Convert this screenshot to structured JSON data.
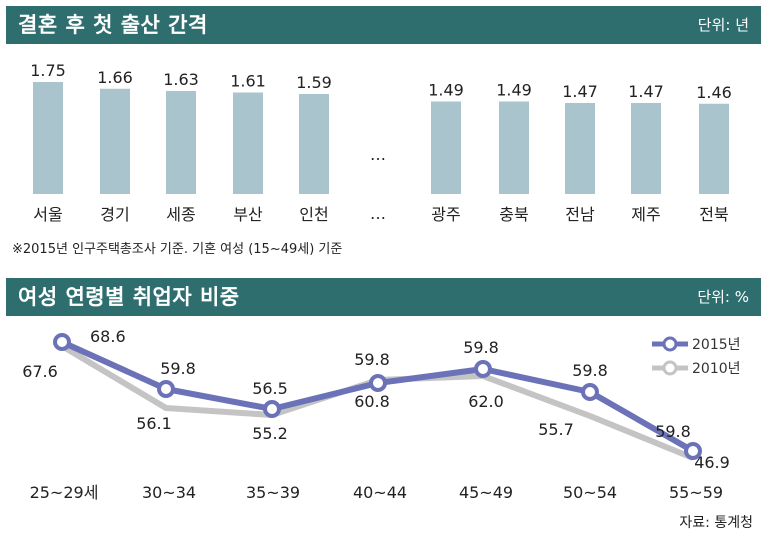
{
  "panel1": {
    "title": "결혼 후 첫 출산 간격",
    "unit": "단위: 년"
  },
  "panel2": {
    "title": "여성 연령별 취업자 비중",
    "unit": "단위: %"
  },
  "footnote": "※2015년 인구주택총조사 기준. 기혼 여성 (15~49세) 기준",
  "ellipsis": "…",
  "source": "자료: 통계청",
  "colors": {
    "header_bg": "#2e6e6f",
    "bar": "#a9c4cc",
    "line_2015": "#6b72b8",
    "line_2010": "#c4c4c4"
  },
  "chart_data": [
    {
      "type": "bar",
      "title": "결혼 후 첫 출산 간격",
      "unit": "단위: 년",
      "categories": [
        "서울",
        "경기",
        "세종",
        "부산",
        "인천",
        "광주",
        "충북",
        "전남",
        "제주",
        "전북"
      ],
      "values": [
        1.75,
        1.66,
        1.63,
        1.61,
        1.59,
        1.49,
        1.49,
        1.47,
        1.47,
        1.46
      ],
      "value_labels": [
        "1.75",
        "1.66",
        "1.63",
        "1.61",
        "1.59",
        "1.49",
        "1.49",
        "1.47",
        "1.47",
        "1.46"
      ],
      "gap_after_index": 4,
      "grid": false
    },
    {
      "type": "line",
      "title": "여성 연령별 취업자 비중",
      "unit": "단위: %",
      "categories": [
        "25~29세",
        "30~34",
        "35~39",
        "40~44",
        "45~49",
        "50~54",
        "55~59"
      ],
      "series": [
        {
          "name": "2015년",
          "values": [
            68.6,
            59.8,
            56.5,
            59.8,
            59.8,
            59.8,
            59.8
          ]
        },
        {
          "name": "2010년",
          "values": [
            67.6,
            56.1,
            55.2,
            60.8,
            62.0,
            55.7,
            46.9
          ]
        }
      ],
      "labels_2015": [
        "68.6",
        "59.8",
        "56.5",
        "59.8",
        "59.8",
        "59.8",
        "59.8"
      ],
      "labels_2010": [
        "67.6",
        "56.1",
        "55.2",
        "60.8",
        "62.0",
        "55.7",
        "46.9"
      ],
      "legend_position": "top-right",
      "grid": false
    }
  ]
}
